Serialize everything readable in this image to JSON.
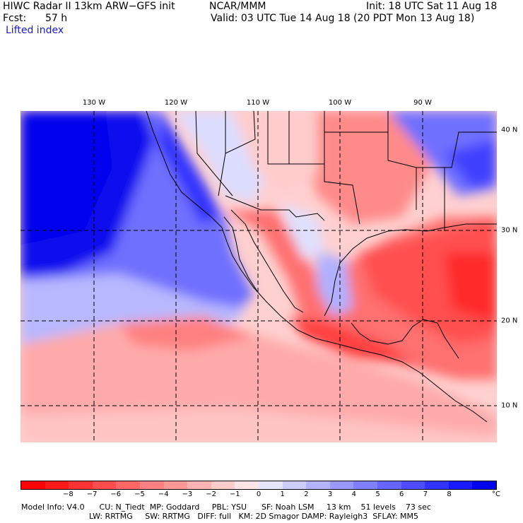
{
  "header": {
    "title": "HIWC Radar II 13km ARW−GFS init",
    "org": "NCAR/MMM",
    "init": "Init: 18 UTC Sat 11 Aug 18",
    "fcst_label": "Fcst:",
    "fcst_value": "57 h",
    "valid": "Valid: 03 UTC Tue 14 Aug 18 (20 PDT Mon 13 Aug 18)",
    "field": "Lifted index"
  },
  "longitude_labels": [
    "130 W",
    "120 W",
    "110 W",
    "100 W",
    "90 W"
  ],
  "latitude_labels": [
    "40 N",
    "30 N",
    "20 N",
    "10 N"
  ],
  "colorbar": {
    "colors": [
      "#ff0000",
      "#ff1a1a",
      "#ff3333",
      "#ff4d4d",
      "#ff6666",
      "#ff8080",
      "#ff9999",
      "#ffb3b3",
      "#ffcccc",
      "#ffe6e6",
      "#e6e6ff",
      "#ccccff",
      "#b3b3ff",
      "#9999ff",
      "#8080ff",
      "#6666ff",
      "#4d4dff",
      "#3333ff",
      "#1a1aff",
      "#0000ee"
    ],
    "ticks": [
      "−8",
      "−7",
      "−6",
      "−5",
      "−4",
      "−3",
      "−2",
      "−1",
      "0",
      "1",
      "2",
      "3",
      "4",
      "5",
      "6",
      "7",
      "8"
    ],
    "unit": "°C"
  },
  "model_info": {
    "line1": "Model Info: V4.0      CU: N_Tiedt  MP: Goddard     PBL: YSU      SF: Noah LSM     13 km    51 levels    73 sec",
    "line2": "LW: RRTMG     SW: RRTMG   DIFF: full   KM: 2D Smagor DAMP: Rayleigh3  SFLAY: MM5"
  },
  "colors": {
    "stable_blue": "#0000ee",
    "unstable_red": "#ff3333",
    "neutral": "#ffe6e6",
    "grid": "#000000"
  }
}
